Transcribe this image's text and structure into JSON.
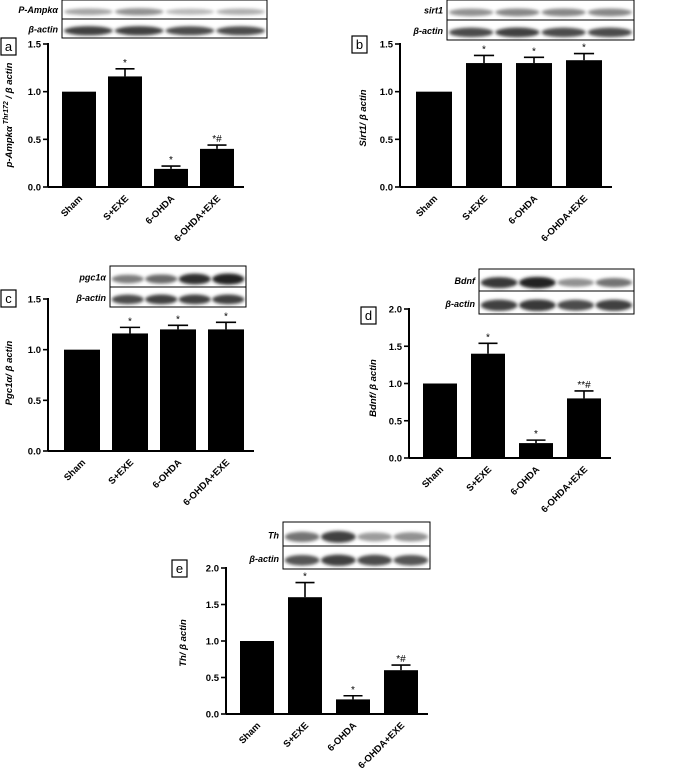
{
  "chart_data": [
    {
      "type": "bar",
      "panel": "a",
      "ylabel_main": "p-Ampkα",
      "ylabel_sup": "Thr172",
      "ylabel_tail": " / β actin",
      "categories": [
        "Sham",
        "S+EXE",
        "6-OHDA",
        "6-OHDA+EXE"
      ],
      "values": [
        1.0,
        1.16,
        0.19,
        0.4
      ],
      "errors": [
        0,
        0.08,
        0.03,
        0.04
      ],
      "significance": [
        "",
        "*",
        "*",
        "*#"
      ],
      "ylim": [
        0,
        1.5
      ],
      "yticks": [
        "0.0",
        "0.5",
        "1.0",
        "1.5"
      ],
      "blot_labels": [
        "P-Ampkα",
        "β-actin"
      ],
      "bar_color": "#000000"
    },
    {
      "type": "bar",
      "panel": "b",
      "ylabel_main": "Sirt1/ β actin",
      "categories": [
        "Sham",
        "S+EXE",
        "6-OHDA",
        "6-OHDA+EXE"
      ],
      "values": [
        1.0,
        1.3,
        1.3,
        1.33
      ],
      "errors": [
        0,
        0.08,
        0.06,
        0.07
      ],
      "significance": [
        "",
        "*",
        "*",
        "*"
      ],
      "ylim": [
        0,
        1.5
      ],
      "yticks": [
        "0.0",
        "0.5",
        "1.0",
        "1.5"
      ],
      "blot_labels": [
        "sirt1",
        "β-actin"
      ],
      "bar_color": "#000000"
    },
    {
      "type": "bar",
      "panel": "c",
      "ylabel_main": "Pgc1α/ β actin",
      "categories": [
        "Sham",
        "S+EXE",
        "6-OHDA",
        "6-OHDA+EXE"
      ],
      "values": [
        1.0,
        1.16,
        1.2,
        1.2
      ],
      "errors": [
        0,
        0.06,
        0.04,
        0.07
      ],
      "significance": [
        "",
        "*",
        "*",
        "*"
      ],
      "ylim": [
        0,
        1.5
      ],
      "yticks": [
        "0.0",
        "0.5",
        "1.0",
        "1.5"
      ],
      "blot_labels": [
        "pgc1α",
        "β-actin"
      ],
      "bar_color": "#000000"
    },
    {
      "type": "bar",
      "panel": "d",
      "ylabel_main": "Bdnf/ β actin",
      "categories": [
        "Sham",
        "S+EXE",
        "6-OHDA",
        "6-OHDA+EXE"
      ],
      "values": [
        1.0,
        1.4,
        0.2,
        0.8
      ],
      "errors": [
        0,
        0.14,
        0.04,
        0.1
      ],
      "significance": [
        "",
        "*",
        "*",
        "**#"
      ],
      "ylim": [
        0,
        2.0
      ],
      "yticks": [
        "0.0",
        "0.5",
        "1.0",
        "1.5",
        "2.0"
      ],
      "blot_labels": [
        "Bdnf",
        "β-actin"
      ],
      "bar_color": "#000000"
    },
    {
      "type": "bar",
      "panel": "e",
      "ylabel_main": "Th/ β actin",
      "categories": [
        "Sham",
        "S+EXE",
        "6-OHDA",
        "6-OHDA+EXE"
      ],
      "values": [
        1.0,
        1.6,
        0.2,
        0.6
      ],
      "errors": [
        0,
        0.2,
        0.05,
        0.07
      ],
      "significance": [
        "",
        "*",
        "*",
        "*#"
      ],
      "ylim": [
        0,
        2.0
      ],
      "yticks": [
        "0.0",
        "0.5",
        "1.0",
        "1.5",
        "2.0"
      ],
      "blot_labels": [
        "Th",
        "β-actin"
      ],
      "bar_color": "#000000"
    }
  ]
}
